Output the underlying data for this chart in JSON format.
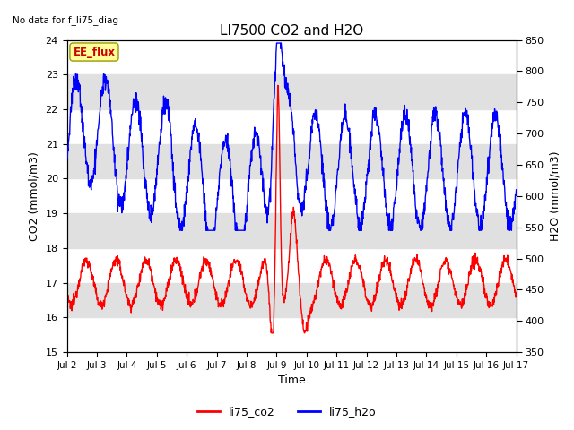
{
  "title": "LI7500 CO2 and H2O",
  "top_left_text": "No data for f_li75_diag",
  "xlabel": "Time",
  "ylabel_left": "CO2 (mmol/m3)",
  "ylabel_right": "H2O (mmol/m3)",
  "ylim_left": [
    15.0,
    24.0
  ],
  "ylim_right": [
    350,
    850
  ],
  "yticks_left": [
    15.0,
    16.0,
    17.0,
    18.0,
    19.0,
    20.0,
    21.0,
    22.0,
    23.0,
    24.0
  ],
  "yticks_right": [
    350,
    400,
    450,
    500,
    550,
    600,
    650,
    700,
    750,
    800,
    850
  ],
  "xtick_labels": [
    "Jul 2",
    "Jul 3",
    "Jul 4",
    "Jul 5",
    "Jul 6",
    "Jul 7",
    "Jul 8",
    "Jul 9",
    "Jul 10",
    "Jul 11",
    "Jul 12",
    "Jul 13",
    "Jul 14",
    "Jul 15",
    "Jul 16",
    "Jul 17"
  ],
  "legend_labels": [
    "li75_co2",
    "li75_h2o"
  ],
  "legend_colors": [
    "red",
    "blue"
  ],
  "band_color": "#e0e0e0",
  "ee_flux_box_color": "#ffff99",
  "ee_flux_text_color": "#cc0000",
  "background_color": "#ffffff"
}
